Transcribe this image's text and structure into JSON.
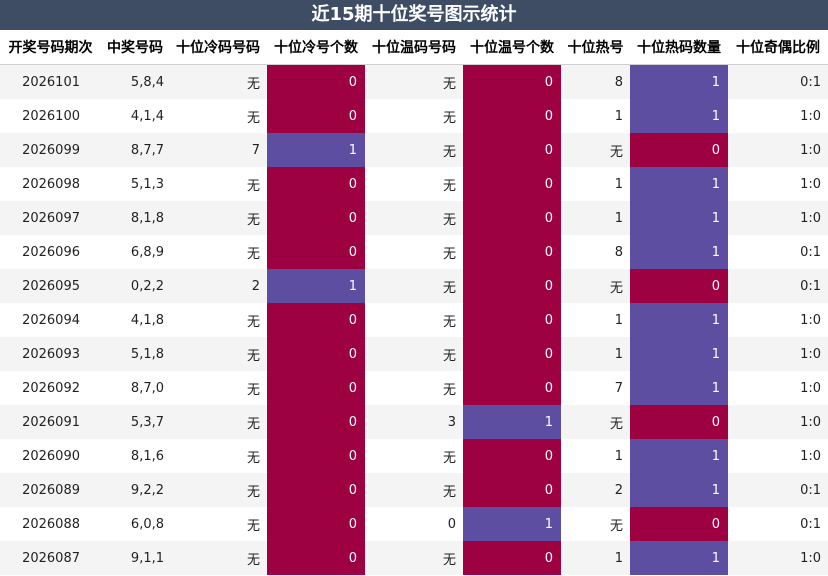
{
  "title": "近15期十位奖号图示统计",
  "headers": [
    "开奖号码期次",
    "中奖号码",
    "十位冷码号码",
    "十位冷号个数",
    "十位温码号码",
    "十位温号个数",
    "十位热号",
    "十位热码数量",
    "十位奇偶比例"
  ],
  "colors": {
    "title_bg": "#3e4d64",
    "count_one": "#5e4ea2",
    "count_zero": "#9e0142"
  },
  "rows": [
    {
      "issue": "2026101",
      "draw": "5,8,4",
      "cold_code": "无",
      "cold_count": "0",
      "warm_code": "无",
      "warm_count": "0",
      "hot_code": "8",
      "hot_count": "1",
      "ratio": "0:1"
    },
    {
      "issue": "2026100",
      "draw": "4,1,4",
      "cold_code": "无",
      "cold_count": "0",
      "warm_code": "无",
      "warm_count": "0",
      "hot_code": "1",
      "hot_count": "1",
      "ratio": "1:0"
    },
    {
      "issue": "2026099",
      "draw": "8,7,7",
      "cold_code": "7",
      "cold_count": "1",
      "warm_code": "无",
      "warm_count": "0",
      "hot_code": "无",
      "hot_count": "0",
      "ratio": "1:0"
    },
    {
      "issue": "2026098",
      "draw": "5,1,3",
      "cold_code": "无",
      "cold_count": "0",
      "warm_code": "无",
      "warm_count": "0",
      "hot_code": "1",
      "hot_count": "1",
      "ratio": "1:0"
    },
    {
      "issue": "2026097",
      "draw": "8,1,8",
      "cold_code": "无",
      "cold_count": "0",
      "warm_code": "无",
      "warm_count": "0",
      "hot_code": "1",
      "hot_count": "1",
      "ratio": "1:0"
    },
    {
      "issue": "2026096",
      "draw": "6,8,9",
      "cold_code": "无",
      "cold_count": "0",
      "warm_code": "无",
      "warm_count": "0",
      "hot_code": "8",
      "hot_count": "1",
      "ratio": "0:1"
    },
    {
      "issue": "2026095",
      "draw": "0,2,2",
      "cold_code": "2",
      "cold_count": "1",
      "warm_code": "无",
      "warm_count": "0",
      "hot_code": "无",
      "hot_count": "0",
      "ratio": "0:1"
    },
    {
      "issue": "2026094",
      "draw": "4,1,8",
      "cold_code": "无",
      "cold_count": "0",
      "warm_code": "无",
      "warm_count": "0",
      "hot_code": "1",
      "hot_count": "1",
      "ratio": "1:0"
    },
    {
      "issue": "2026093",
      "draw": "5,1,8",
      "cold_code": "无",
      "cold_count": "0",
      "warm_code": "无",
      "warm_count": "0",
      "hot_code": "1",
      "hot_count": "1",
      "ratio": "1:0"
    },
    {
      "issue": "2026092",
      "draw": "8,7,0",
      "cold_code": "无",
      "cold_count": "0",
      "warm_code": "无",
      "warm_count": "0",
      "hot_code": "7",
      "hot_count": "1",
      "ratio": "1:0"
    },
    {
      "issue": "2026091",
      "draw": "5,3,7",
      "cold_code": "无",
      "cold_count": "0",
      "warm_code": "3",
      "warm_count": "1",
      "hot_code": "无",
      "hot_count": "0",
      "ratio": "1:0"
    },
    {
      "issue": "2026090",
      "draw": "8,1,6",
      "cold_code": "无",
      "cold_count": "0",
      "warm_code": "无",
      "warm_count": "0",
      "hot_code": "1",
      "hot_count": "1",
      "ratio": "1:0"
    },
    {
      "issue": "2026089",
      "draw": "9,2,2",
      "cold_code": "无",
      "cold_count": "0",
      "warm_code": "无",
      "warm_count": "0",
      "hot_code": "2",
      "hot_count": "1",
      "ratio": "0:1"
    },
    {
      "issue": "2026088",
      "draw": "6,0,8",
      "cold_code": "无",
      "cold_count": "0",
      "warm_code": "0",
      "warm_count": "1",
      "hot_code": "无",
      "hot_count": "0",
      "ratio": "0:1"
    },
    {
      "issue": "2026087",
      "draw": "9,1,1",
      "cold_code": "无",
      "cold_count": "0",
      "warm_code": "无",
      "warm_count": "0",
      "hot_code": "1",
      "hot_count": "1",
      "ratio": "1:0"
    }
  ]
}
